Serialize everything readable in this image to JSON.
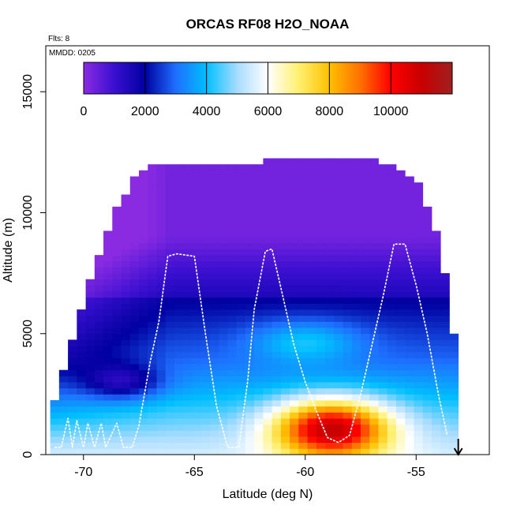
{
  "chart_data": {
    "type": "heatmap",
    "title": "ORCAS RF08 H2O_NOAA",
    "annotation_flights": "Flts: 8",
    "annotation_date": "MMDD: 0205",
    "xlabel": "Latitude (deg N)",
    "ylabel": "Altitude (m)",
    "xlim": [
      -71.7,
      -51.7
    ],
    "ylim": [
      0,
      16900
    ],
    "x_ticks": [
      -70,
      -65,
      -60,
      -55
    ],
    "x_tick_labels": [
      "-70",
      "-65",
      "-60",
      "-55"
    ],
    "y_ticks": [
      0,
      5000,
      10000,
      15000
    ],
    "y_tick_labels": [
      "0",
      "5000",
      "10000",
      "15000"
    ],
    "colorbar": {
      "min": 0,
      "max": 12000,
      "ticks": [
        0,
        2000,
        4000,
        6000,
        8000,
        10000
      ],
      "tick_labels": [
        "0",
        "2000",
        "4000",
        "6000",
        "8000",
        "10000"
      ],
      "stops": [
        {
          "value": 0,
          "color": "#8A2BE2"
        },
        {
          "value": 1000,
          "color": "#3A0FD0"
        },
        {
          "value": 2000,
          "color": "#0000A0"
        },
        {
          "value": 3000,
          "color": "#1E6FFF"
        },
        {
          "value": 4000,
          "color": "#00BFFF"
        },
        {
          "value": 5000,
          "color": "#A8DCFF"
        },
        {
          "value": 6000,
          "color": "#FFFFFF"
        },
        {
          "value": 7000,
          "color": "#FFF070"
        },
        {
          "value": 8000,
          "color": "#FFC000"
        },
        {
          "value": 9000,
          "color": "#FF7000"
        },
        {
          "value": 10000,
          "color": "#FF0000"
        },
        {
          "value": 11000,
          "color": "#C80000"
        },
        {
          "value": 12000,
          "color": "#A02020"
        }
      ]
    },
    "domain": {
      "lat_min": -71.5,
      "lat_max": -53.1,
      "lat_step": 0.4,
      "alt_step": 250,
      "top_profile_lat": [
        -71.5,
        -70.5,
        -69.5,
        -68.5,
        -67.5,
        -66.5,
        -65.0,
        -62.5,
        -61.0,
        -59.0,
        -57.0,
        -55.0,
        -54.0,
        -53.5,
        -53.1
      ],
      "top_profile_alt": [
        1500,
        4500,
        7800,
        10000,
        11700,
        11800,
        11900,
        11900,
        12100,
        12200,
        12200,
        11300,
        9000,
        6500,
        3500
      ]
    },
    "field_model": {
      "description": "Water vapour mixing ratio (ppmv) as function of latitude and altitude, estimated from the rendered curtain",
      "upper_level_value": 300,
      "mid_level_value": 1900,
      "lower_level_value": 4500,
      "warm_core_center_lat": -58.8,
      "warm_core_center_alt": 1100,
      "warm_core_peak": 10800
    },
    "flight_track_lat": [
      -71.3,
      -71.0,
      -70.7,
      -70.5,
      -70.3,
      -70.0,
      -69.8,
      -69.5,
      -69.2,
      -69.0,
      -68.5,
      -68.2,
      -67.8,
      -67.5,
      -67.0,
      -66.6,
      -66.2,
      -65.8,
      -65.0,
      -64.5,
      -64.0,
      -63.5,
      -63.0,
      -62.6,
      -62.3,
      -61.8,
      -61.5,
      -61.0,
      -60.5,
      -60.0,
      -59.5,
      -59.0,
      -58.5,
      -58.0,
      -57.5,
      -57.0,
      -56.5,
      -56.0,
      -55.5,
      -55.0,
      -54.5,
      -54.0,
      -53.6
    ],
    "flight_track_alt": [
      300,
      300,
      1500,
      300,
      1400,
      300,
      1300,
      300,
      1300,
      300,
      1300,
      300,
      300,
      1200,
      3800,
      5500,
      8200,
      8300,
      8200,
      5000,
      2000,
      300,
      300,
      3000,
      6000,
      8400,
      8500,
      6500,
      4500,
      3000,
      1800,
      700,
      500,
      800,
      2500,
      4500,
      6500,
      8700,
      8700,
      7000,
      5000,
      2500,
      800
    ],
    "arrow_lat": -53.1,
    "arrow_note": "down-arrow"
  }
}
